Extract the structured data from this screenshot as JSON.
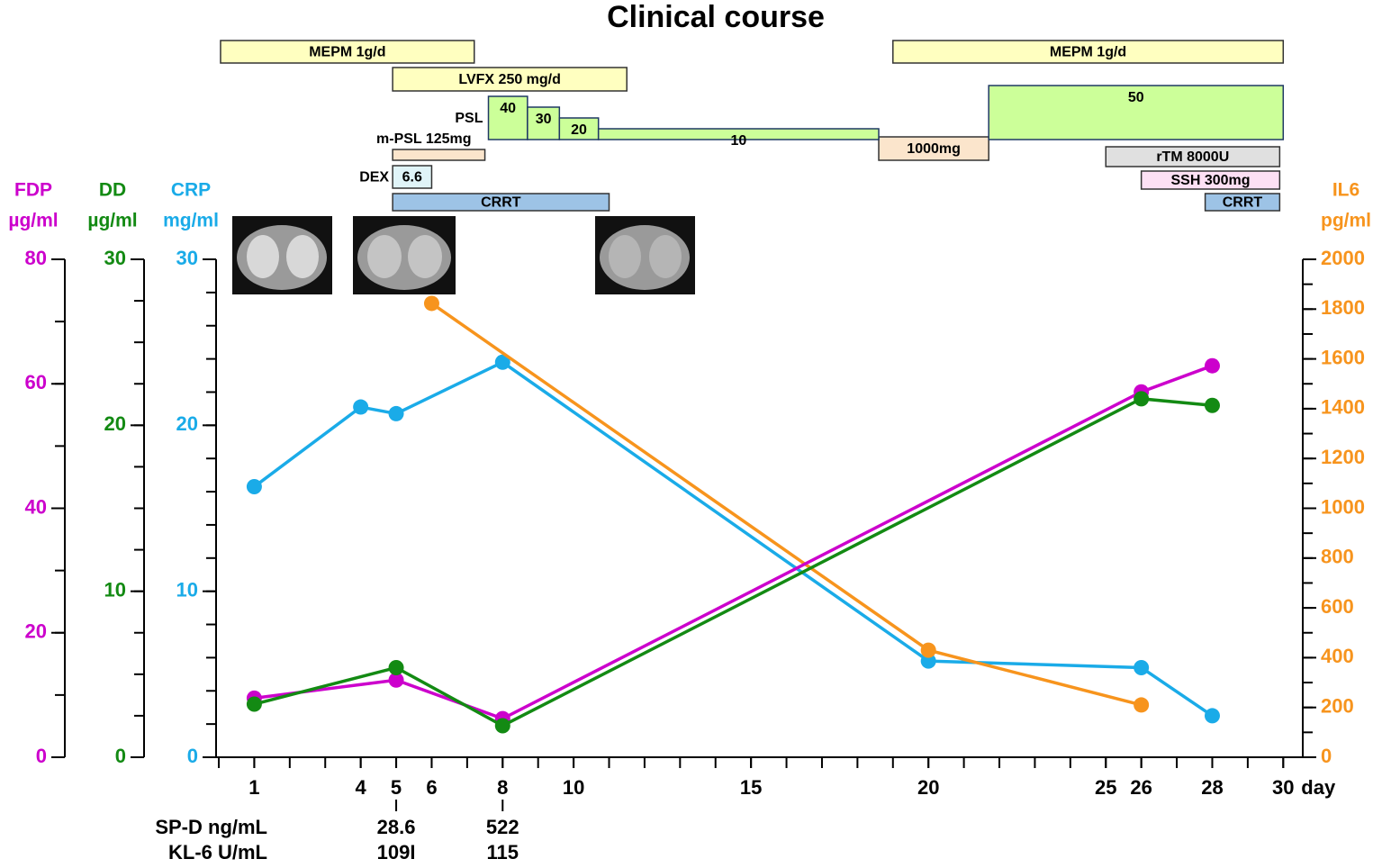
{
  "chart_data": {
    "type": "line",
    "title": "Clinical course",
    "xlim": [
      0,
      30.5
    ],
    "xticks": [
      1,
      4,
      5,
      6,
      8,
      10,
      15,
      20,
      25,
      26,
      28,
      30
    ],
    "x_minor_step": 1,
    "x_unit": "day",
    "y_axes": [
      {
        "name": "FDP",
        "unit": "µg/ml",
        "color": "#cc00cc",
        "ylim": [
          0,
          80
        ],
        "yticks": [
          0,
          20,
          40,
          60,
          80
        ],
        "minor_step": 10
      },
      {
        "name": "DD",
        "unit": "µg/ml",
        "color": "#138a13",
        "ylim": [
          0,
          30
        ],
        "yticks": [
          0,
          10,
          20,
          30
        ],
        "minor_step": 2.5
      },
      {
        "name": "CRP",
        "unit": "mg/ml",
        "color": "#1aabe8",
        "ylim": [
          0,
          30
        ],
        "yticks": [
          0,
          10,
          20,
          30
        ],
        "minor_step": 2
      },
      {
        "name": "IL6",
        "unit": "pg/ml",
        "color": "#f7941d",
        "ylim": [
          0,
          2000
        ],
        "yticks": [
          0,
          200,
          400,
          600,
          800,
          1000,
          1200,
          1400,
          1600,
          1800,
          2000
        ],
        "minor_step": 100
      }
    ],
    "series": [
      {
        "axis": 2,
        "color": "#1aabe8",
        "x": [
          1,
          4,
          5,
          8,
          20,
          26,
          28
        ],
        "values": [
          16.3,
          21.1,
          20.7,
          23.8,
          5.8,
          5.4,
          2.5
        ]
      },
      {
        "axis": 3,
        "color": "#f7941d",
        "x": [
          6,
          20,
          26
        ],
        "values": [
          1823,
          430,
          210
        ]
      },
      {
        "axis": 0,
        "color": "#cc00cc",
        "x": [
          1,
          5,
          8,
          26,
          28
        ],
        "values": [
          9.5,
          12.4,
          6.2,
          58.7,
          62.9
        ]
      },
      {
        "axis": 1,
        "color": "#138a13",
        "x": [
          1,
          5,
          8,
          26,
          28
        ],
        "values": [
          3.2,
          5.4,
          1.9,
          21.6,
          21.2
        ]
      }
    ],
    "therapies": [
      {
        "label": "MEPM 1g/d",
        "start": 0.05,
        "end": 7.2
      },
      {
        "label": "MEPM 1g/d",
        "start": 19,
        "end": 30
      },
      {
        "label": "LVFX 250 mg/d",
        "start": 4.9,
        "end": 11.5
      },
      {
        "label": "m-PSL 125mg",
        "start": 4.9,
        "end": 7.5
      },
      {
        "label": "DEX",
        "dose": 6.6,
        "start": 4.9,
        "end": 6.0
      },
      {
        "label": "CRRT",
        "start": 4.9,
        "end": 11.0
      },
      {
        "label": "1000mg",
        "start": 18.6,
        "end": 21.7
      },
      {
        "label": "rTM 8000U",
        "start": 25,
        "end": 29.9
      },
      {
        "label": "SSH 300mg",
        "start": 26,
        "end": 29.9
      },
      {
        "label": "CRRT",
        "start": 27.8,
        "end": 29.9
      }
    ],
    "psl": {
      "label": "PSL",
      "steps": [
        {
          "dose": 40,
          "start": 7.6,
          "end": 8.7
        },
        {
          "dose": 30,
          "start": 8.7,
          "end": 9.6
        },
        {
          "dose": 20,
          "start": 9.6,
          "end": 10.7
        },
        {
          "dose": 10,
          "start": 10.7,
          "end": 18.6
        },
        {
          "dose": 50,
          "start": 21.7,
          "end": 30
        }
      ]
    },
    "labs": {
      "days": [
        5,
        8
      ],
      "rows": [
        {
          "label": "SP-D ng/mL",
          "values": [
            28.6,
            522
          ]
        },
        {
          "label": "KL-6 U/mL",
          "values": [
            "109I",
            115
          ]
        }
      ]
    }
  }
}
